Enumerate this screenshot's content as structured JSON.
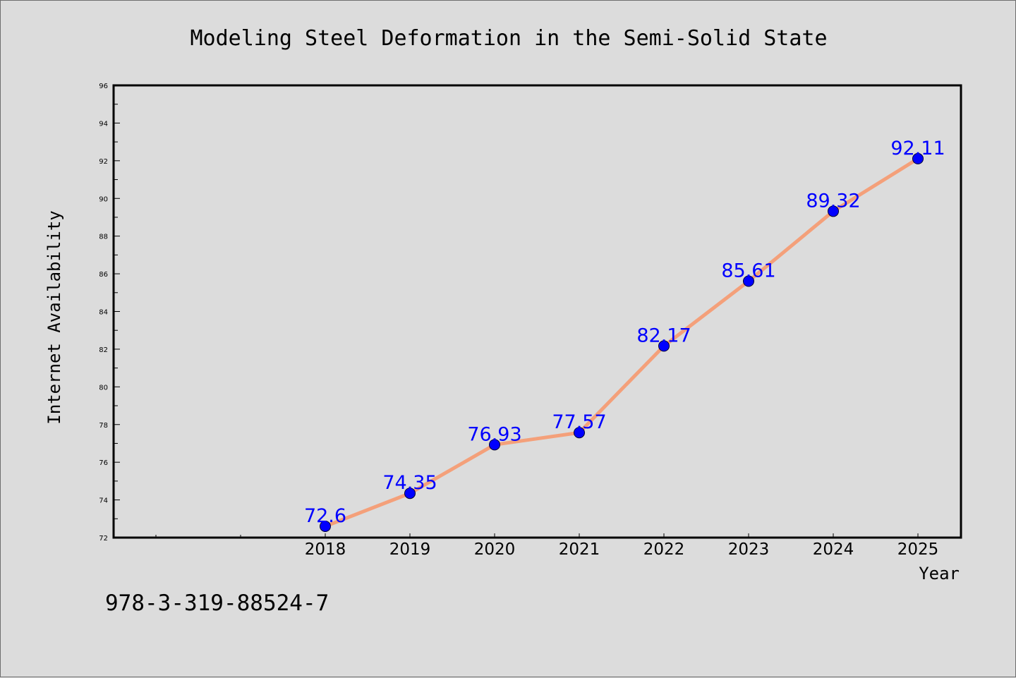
{
  "chart_data": {
    "type": "line",
    "title": "Modeling Steel Deformation in the Semi-Solid State",
    "xlabel": "Year",
    "ylabel": "Internet Availability",
    "x": [
      "2018",
      "2019",
      "2020",
      "2021",
      "2022",
      "2023",
      "2024",
      "2025"
    ],
    "series": [
      {
        "values": [
          72.6,
          74.35,
          76.93,
          77.57,
          82.17,
          85.61,
          89.32,
          92.11
        ],
        "line_color": "#f4a07a",
        "marker_color": "#0000ff"
      }
    ],
    "data_labels": [
      "72.6",
      "74.35",
      "76.93",
      "77.57",
      "82.17",
      "85.61",
      "89.32",
      "92.11"
    ],
    "ylim": [
      72,
      96
    ],
    "yticks": [
      "72",
      "74",
      "76",
      "78",
      "80",
      "82",
      "84",
      "86",
      "88",
      "90",
      "92",
      "94",
      "96"
    ],
    "grid": false,
    "label_color": "#0000ff"
  },
  "footer": {
    "isbn": "978-3-319-88524-7"
  }
}
